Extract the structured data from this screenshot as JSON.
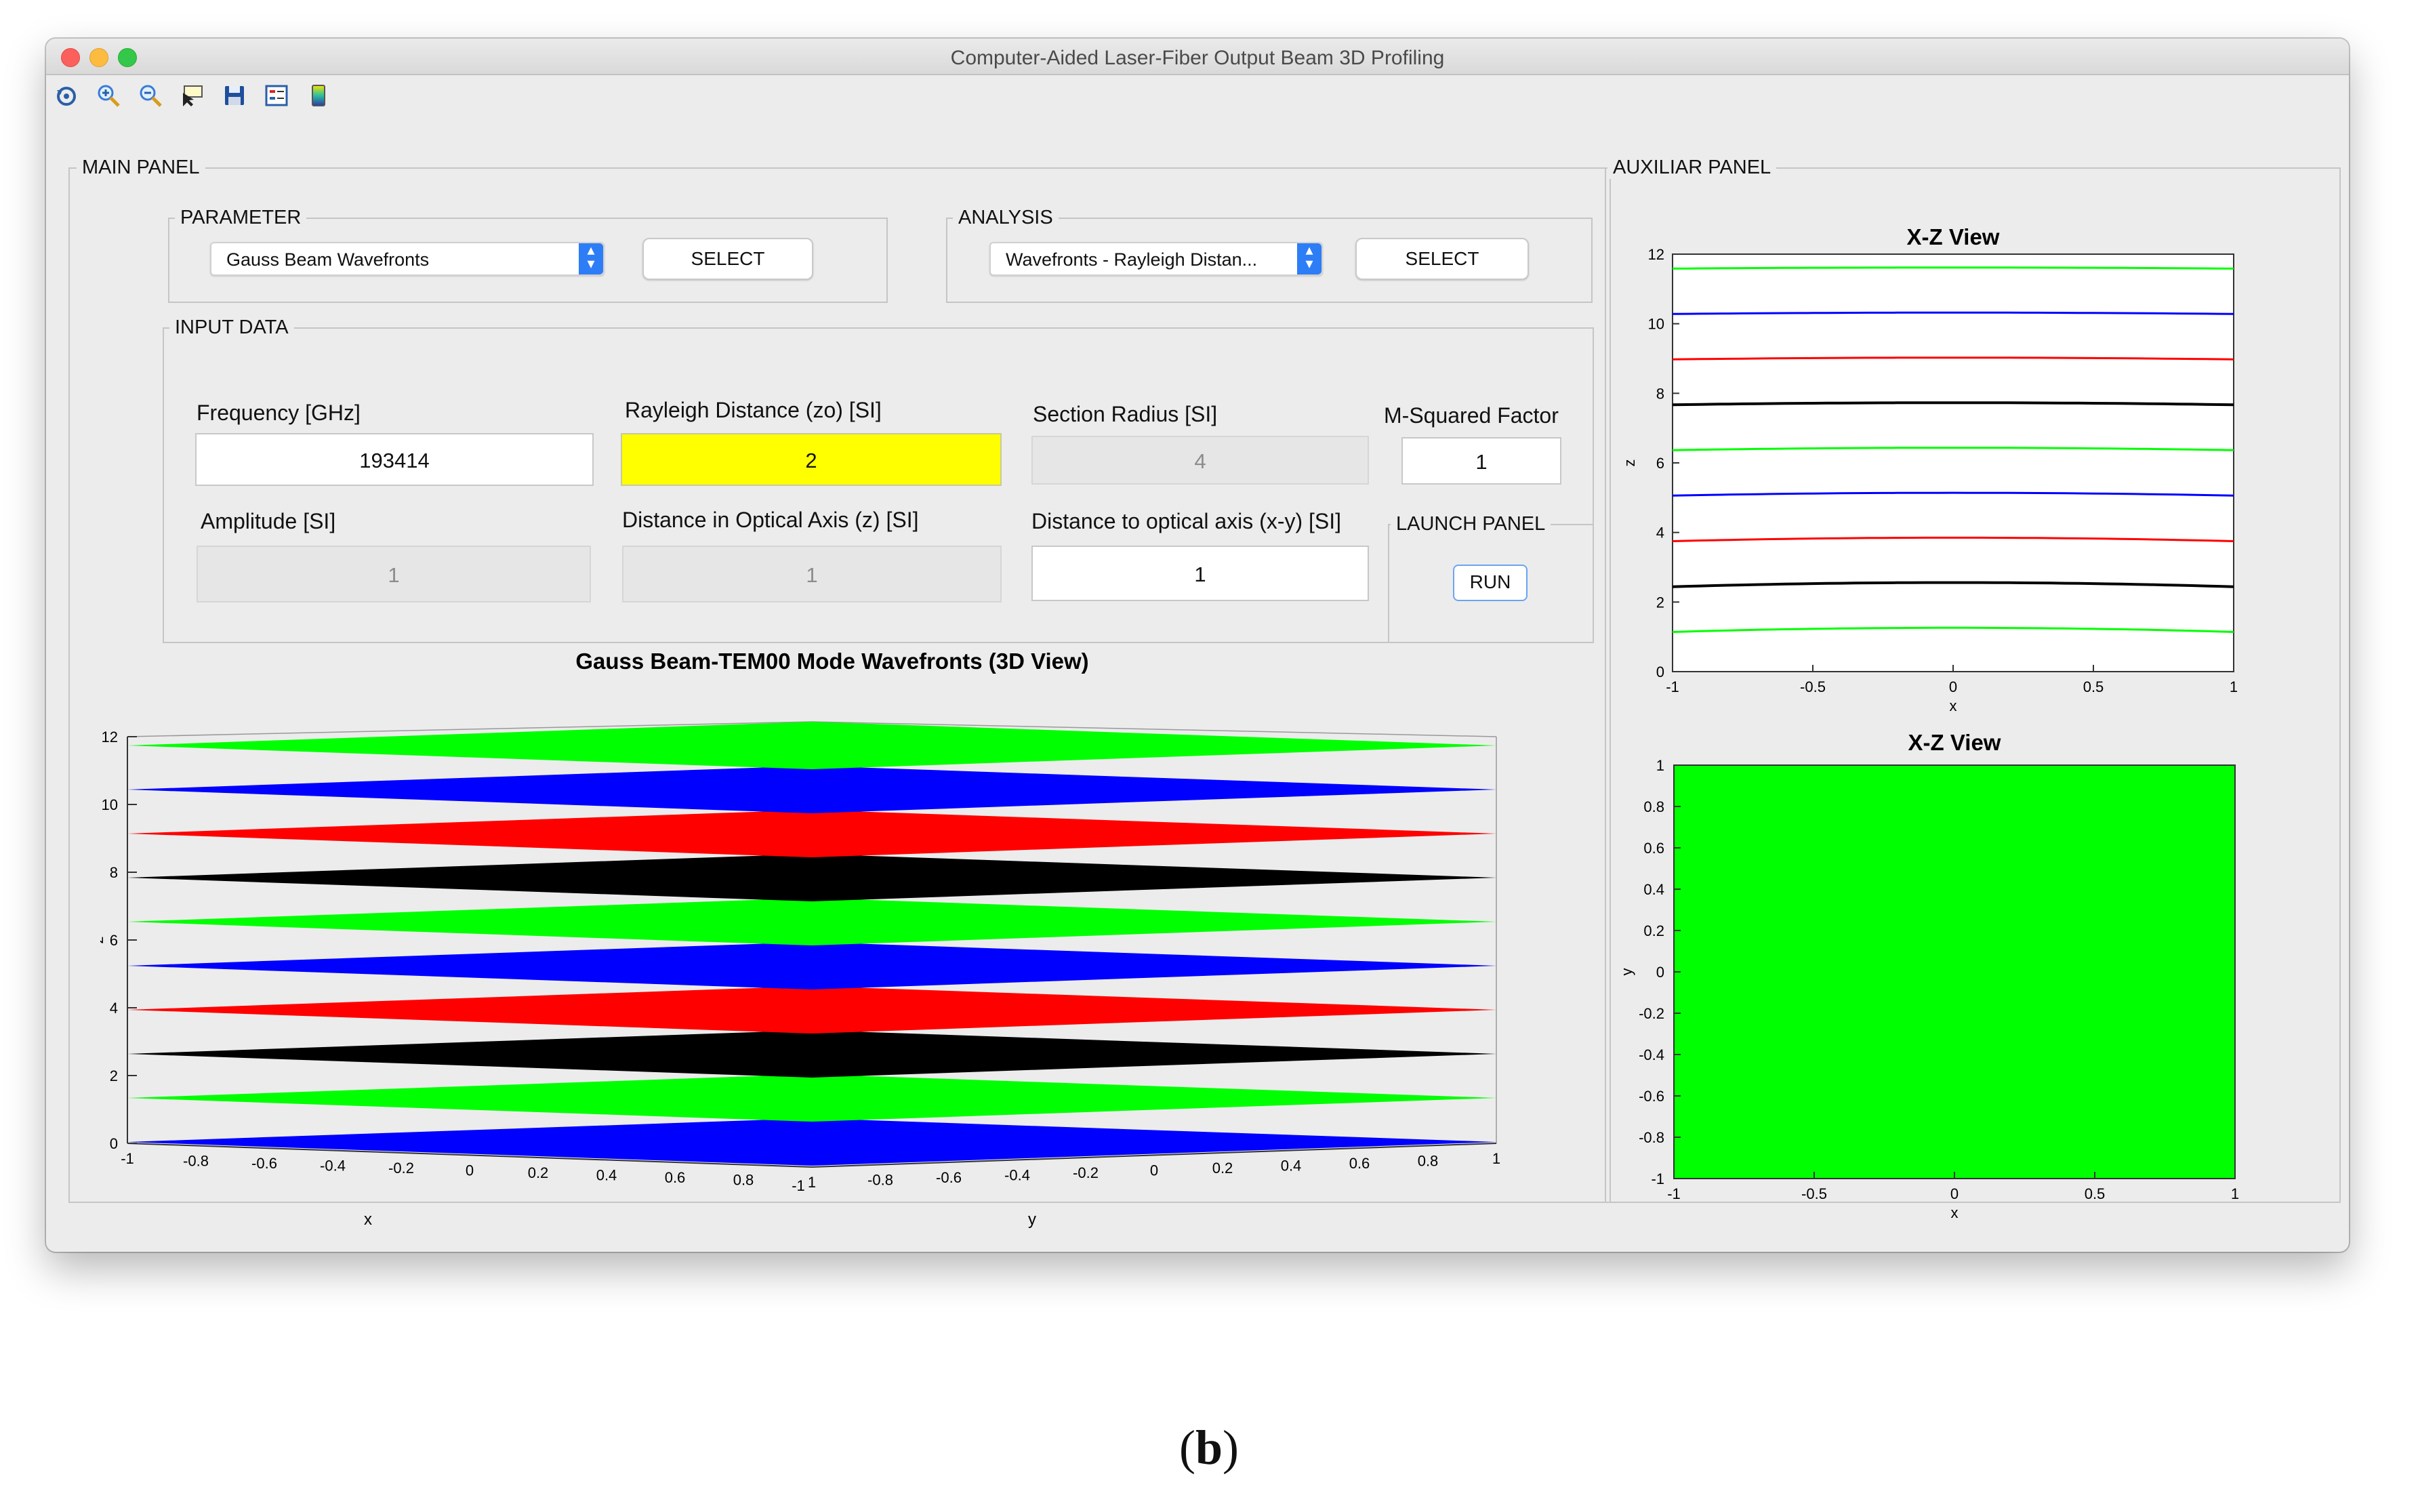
{
  "window": {
    "title": "Computer-Aided Laser-Fiber Output Beam 3D Profiling"
  },
  "toolbar": {
    "icons": [
      "restore-view-icon",
      "zoom-in-icon",
      "zoom-out-icon",
      "data-cursor-icon",
      "save-icon",
      "legend-icon",
      "colorbar-icon"
    ]
  },
  "main_panel": {
    "label": "MAIN PANEL",
    "parameter": {
      "label": "PARAMETER",
      "selected": "Gauss Beam Wavefronts",
      "button": "SELECT"
    },
    "analysis": {
      "label": "ANALYSIS",
      "selected": "Wavefronts - Rayleigh Distan...",
      "button": "SELECT"
    },
    "input_data": {
      "label": "INPUT DATA",
      "frequency": {
        "label": "Frequency [GHz]",
        "value": "193414"
      },
      "rayleigh": {
        "label": "Rayleigh Distance (zo) [SI]",
        "value": "2"
      },
      "section_radius": {
        "label": "Section Radius [SI]",
        "value": "4"
      },
      "m_squared": {
        "label": "M-Squared Factor",
        "value": "1"
      },
      "amplitude": {
        "label": "Amplitude [SI]",
        "value": "1"
      },
      "distance_z": {
        "label": "Distance in Optical Axis (z) [SI]",
        "value": "1"
      },
      "distance_xy": {
        "label": "Distance to optical axis (x-y) [SI]",
        "value": "1"
      }
    },
    "launch_panel": {
      "label": "LAUNCH PANEL",
      "button": "RUN"
    }
  },
  "auxiliar_panel": {
    "label": "AUXILIAR PANEL"
  },
  "chart_data": [
    {
      "type": "area",
      "title": "Gauss Beam-TEM00 Mode Wavefronts (3D View)",
      "xlabel": "x",
      "ylabel": "y",
      "zlabel": "z",
      "xlim": [
        -1,
        1
      ],
      "ylim": [
        -1,
        1
      ],
      "zlim": [
        0,
        12
      ],
      "z_ticks": [
        0,
        2,
        4,
        6,
        8,
        10,
        12
      ],
      "x_ticks": [
        "-1",
        "-0.8",
        "-0.6",
        "-0.4",
        "-0.2",
        "0",
        "0.2",
        "0.4",
        "0.6",
        "0.8",
        "1"
      ],
      "y_ticks": [
        "-1",
        "-0.8",
        "-0.6",
        "-0.4",
        "-0.2",
        "0",
        "0.2",
        "0.4",
        "0.6",
        "0.8",
        "1"
      ],
      "wavefronts": [
        {
          "z": 0.0,
          "color": "#0000ff"
        },
        {
          "z": 1.3,
          "color": "#00ff00"
        },
        {
          "z": 2.6,
          "color": "#000000"
        },
        {
          "z": 3.9,
          "color": "#ff0000"
        },
        {
          "z": 5.2,
          "color": "#0000ff"
        },
        {
          "z": 6.5,
          "color": "#00ff00"
        },
        {
          "z": 7.8,
          "color": "#000000"
        },
        {
          "z": 9.1,
          "color": "#ff0000"
        },
        {
          "z": 10.4,
          "color": "#0000ff"
        },
        {
          "z": 11.7,
          "color": "#00ff00"
        }
      ]
    },
    {
      "type": "line",
      "title": "X-Z View",
      "xlabel": "x",
      "ylabel": "z",
      "xlim": [
        -1,
        1
      ],
      "ylim": [
        0,
        12
      ],
      "x_ticks": [
        "-1",
        "-0.5",
        "0",
        "0.5",
        "1"
      ],
      "y_ticks": [
        "0",
        "2",
        "4",
        "6",
        "8",
        "10",
        "12"
      ],
      "series": [
        {
          "color": "#00ff00",
          "z0": 1.2,
          "curvature": 0.12
        },
        {
          "color": "#000000",
          "z0": 2.5,
          "curvature": 0.12
        },
        {
          "color": "#ff0000",
          "z0": 3.8,
          "curvature": 0.1
        },
        {
          "color": "#0000ff",
          "z0": 5.1,
          "curvature": 0.08
        },
        {
          "color": "#00ff00",
          "z0": 6.4,
          "curvature": 0.07
        },
        {
          "color": "#000000",
          "z0": 7.7,
          "curvature": 0.06
        },
        {
          "color": "#ff0000",
          "z0": 9.0,
          "curvature": 0.05
        },
        {
          "color": "#0000ff",
          "z0": 10.3,
          "curvature": 0.04
        },
        {
          "color": "#00ff00",
          "z0": 11.6,
          "curvature": 0.03
        }
      ]
    },
    {
      "type": "heatmap",
      "title": "X-Z View",
      "xlabel": "x",
      "ylabel": "y",
      "xlim": [
        -1,
        1
      ],
      "ylim": [
        -1,
        1
      ],
      "x_ticks": [
        "-1",
        "-0.5",
        "0",
        "0.5",
        "1"
      ],
      "y_ticks": [
        "1",
        "0.8",
        "0.6",
        "0.4",
        "0.2",
        "0",
        "-0.2",
        "-0.4",
        "-0.6",
        "-0.8",
        "-1"
      ],
      "fill_color": "#00ff00"
    }
  ],
  "caption": {
    "text": "(b)"
  }
}
